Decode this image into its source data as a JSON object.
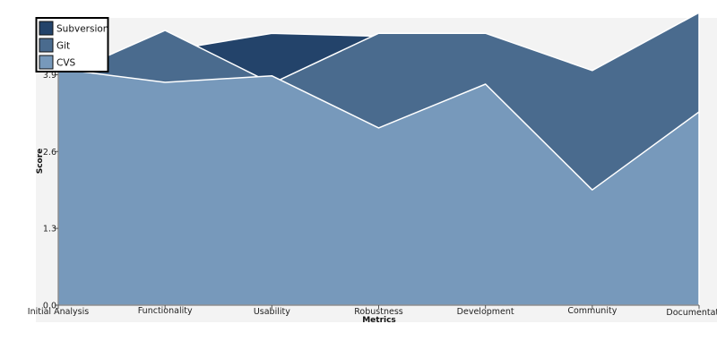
{
  "chart_data": {
    "type": "area",
    "xlabel": "Metrics",
    "ylabel": "Score",
    "categories": [
      "Initial Analysis",
      "Functionality",
      "Usability",
      "Robustness",
      "Development",
      "Community",
      "Documentation"
    ],
    "ylim": [
      0,
      4.86
    ],
    "yticks": [
      "0.0",
      "1.3",
      "2.6",
      "3.9"
    ],
    "ytick_values": [
      0.0,
      1.3,
      2.6,
      3.9
    ],
    "stacked": false,
    "grid": false,
    "legend_position": "top-left",
    "series": [
      {
        "name": "Subversion",
        "color": "#23436a",
        "values": [
          3.95,
          4.3,
          4.6,
          4.55,
          4.55,
          3.97,
          4.95
        ]
      },
      {
        "name": "Git",
        "color": "#4a6b8e",
        "values": [
          3.85,
          4.65,
          3.75,
          4.6,
          4.6,
          3.97,
          4.95
        ]
      },
      {
        "name": "CVS",
        "color": "#7799bb",
        "values": [
          4.0,
          3.77,
          3.88,
          3.0,
          3.74,
          1.95,
          3.27
        ]
      }
    ],
    "background": "#f3f3f3",
    "outline_color": "#ffffff"
  }
}
